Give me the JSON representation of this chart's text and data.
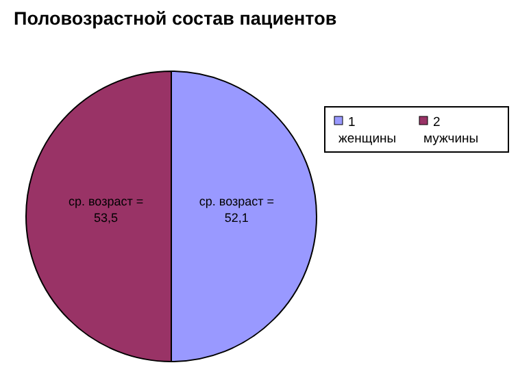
{
  "chart_data": {
    "type": "pie",
    "title": "Половозрастной состав пациентов",
    "categories": [
      "1\nженщины",
      "2\nмужчины"
    ],
    "values": [
      50,
      50
    ],
    "colors": [
      "#9999ff",
      "#993366"
    ],
    "annotations": [
      "ср. возраст =\n52,1",
      "ср. возраст =\n53,5"
    ],
    "legend": "right"
  }
}
